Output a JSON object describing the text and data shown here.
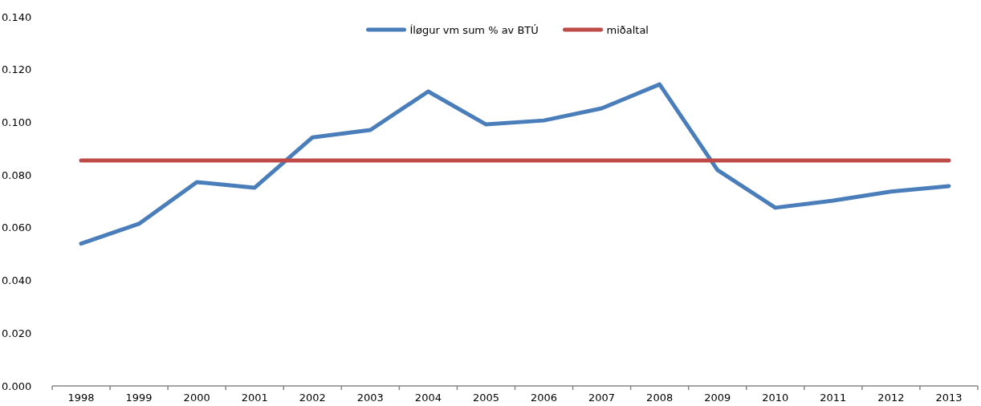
{
  "chart_data": {
    "type": "line",
    "categories": [
      "1998",
      "1999",
      "2000",
      "2001",
      "2002",
      "2003",
      "2004",
      "2005",
      "2006",
      "2007",
      "2008",
      "2009",
      "2010",
      "2011",
      "2012",
      "2013"
    ],
    "series": [
      {
        "name": "Íløgur vm sum % av BTÚ",
        "color": "#4a7ebb",
        "values": [
          0.054,
          0.0615,
          0.0773,
          0.0752,
          0.0943,
          0.0971,
          0.1117,
          0.0992,
          0.1007,
          0.1053,
          0.1144,
          0.0819,
          0.0676,
          0.0703,
          0.0737,
          0.0758
        ]
      },
      {
        "name": "miðaltal",
        "color": "#be4b48",
        "values": [
          0.0855,
          0.0855,
          0.0855,
          0.0855,
          0.0855,
          0.0855,
          0.0855,
          0.0855,
          0.0855,
          0.0855,
          0.0855,
          0.0855,
          0.0855,
          0.0855,
          0.0855,
          0.0855
        ]
      }
    ],
    "ylim": [
      0,
      0.14
    ],
    "yticks": [
      {
        "value": 0,
        "label": "0.000"
      },
      {
        "value": 0.02,
        "label": "0.020"
      },
      {
        "value": 0.04,
        "label": "0.040"
      },
      {
        "value": 0.06,
        "label": "0.060"
      },
      {
        "value": 0.08,
        "label": "0.080"
      },
      {
        "value": 0.1,
        "label": "0.100"
      },
      {
        "value": 0.12,
        "label": "0.120"
      },
      {
        "value": 0.14,
        "label": "0.140"
      }
    ],
    "legend": "top",
    "grid": false,
    "marker": "none",
    "line_style": "solid"
  }
}
